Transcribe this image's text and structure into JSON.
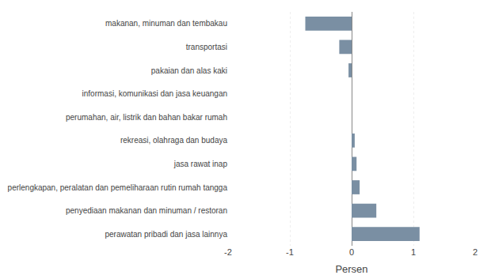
{
  "chart_data": {
    "type": "bar",
    "orientation": "horizontal",
    "categories": [
      "makanan, minuman dan tembakau",
      "transportasi",
      "pakaian dan alas kaki",
      "informasi, komunikasi dan jasa keuangan",
      "perumahan, air, listrik dan bahan bakar rumah",
      "rekreasi, olahraga dan budaya",
      "jasa rawat inap",
      "perlengkapan, peralatan dan pemeliharaan rutin rumah tangga",
      "penyediaan makanan dan minuman / restoran",
      "perawatan pribadi dan jasa lainnya"
    ],
    "values": [
      -0.75,
      -0.2,
      -0.05,
      0.0,
      0.0,
      0.05,
      0.08,
      0.13,
      0.4,
      1.1
    ],
    "color": "#7A8FA3",
    "xlabel": "Persen",
    "xlim": [
      -2,
      2
    ],
    "xticks": [
      -2,
      -1,
      0,
      1,
      2
    ],
    "grid": true
  }
}
